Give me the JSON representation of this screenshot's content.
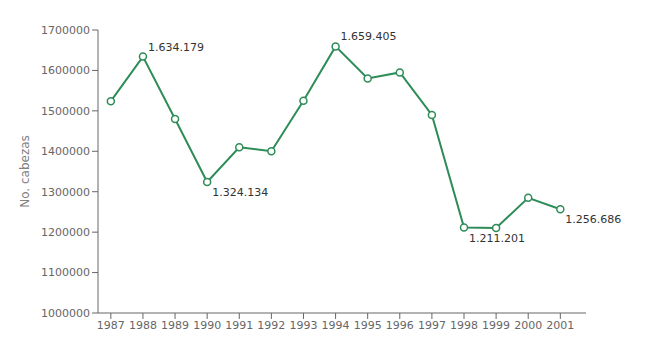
{
  "chart_data": {
    "type": "line",
    "y_label": "No. cabezas",
    "x": [
      1987,
      1988,
      1989,
      1990,
      1991,
      1992,
      1993,
      1994,
      1995,
      1996,
      1997,
      1998,
      1999,
      2000,
      2001
    ],
    "values": [
      1524000,
      1634179,
      1480000,
      1324134,
      1410000,
      1400000,
      1525000,
      1659405,
      1580000,
      1595000,
      1490000,
      1211201,
      1210000,
      1285000,
      1256686
    ],
    "color": "#2d8c57",
    "marker": "circle",
    "xlim": [
      1986.6,
      2001.8
    ],
    "xticks": [
      1987,
      1988,
      1989,
      1990,
      1991,
      1992,
      1993,
      1994,
      1995,
      1996,
      1997,
      1998,
      1999,
      2000,
      2001
    ],
    "ylim": [
      1000000,
      1700000
    ],
    "yticks": [
      1000000,
      1100000,
      1200000,
      1300000,
      1400000,
      1500000,
      1600000,
      1700000
    ],
    "grid": false,
    "annotations": [
      {
        "x": 1988,
        "y": 1634179,
        "label": "1.634.179"
      },
      {
        "x": 1990,
        "y": 1324134,
        "label": "1.324.134"
      },
      {
        "x": 1994,
        "y": 1659405,
        "label": "1.659.405"
      },
      {
        "x": 1998,
        "y": 1211201,
        "label": "1.211.201"
      },
      {
        "x": 2001,
        "y": 1256686,
        "label": "1.256.686"
      }
    ]
  }
}
